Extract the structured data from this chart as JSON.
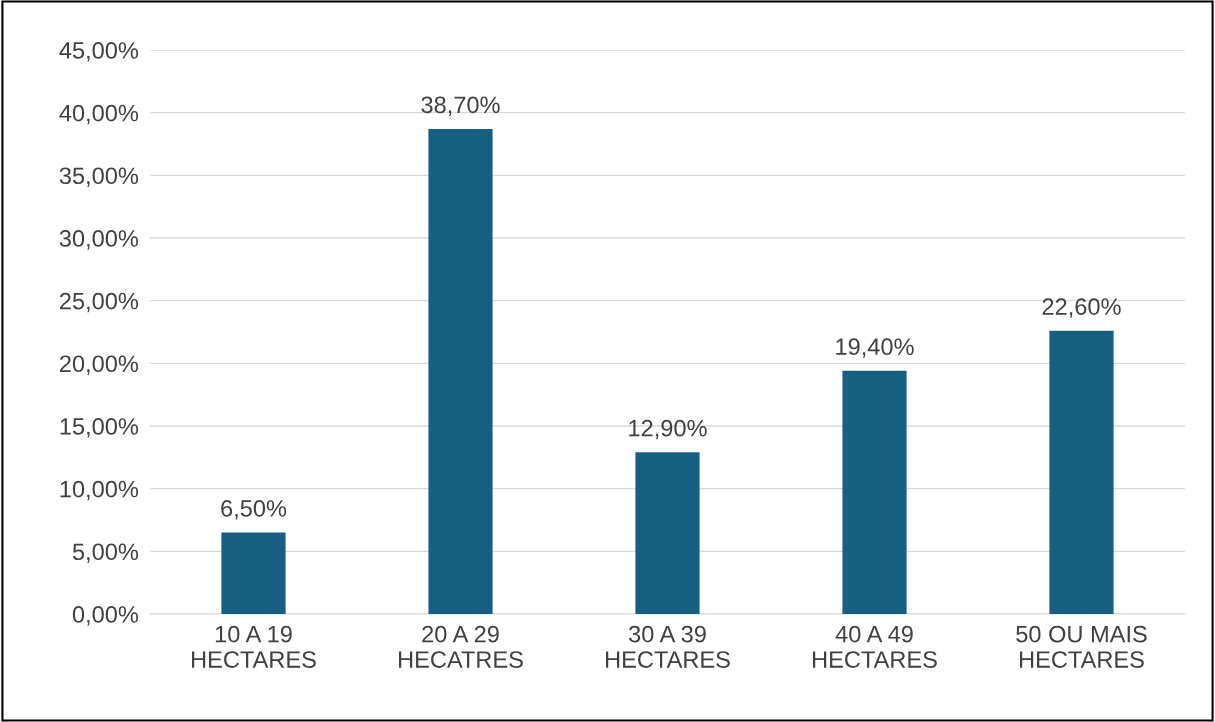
{
  "chart_data": {
    "type": "bar",
    "categories": [
      "10 A 19\nHECTARES",
      "20 A 29\nHECATRES",
      "30 A 39\nHECTARES",
      "40 A 49\nHECTARES",
      "50 OU MAIS\nHECTARES"
    ],
    "values": [
      6.5,
      38.7,
      12.9,
      19.4,
      22.6
    ],
    "value_labels": [
      "6,50%",
      "38,70%",
      "12,90%",
      "19,40%",
      "22,60%"
    ],
    "color": "#175f80",
    "ylim": [
      0,
      45
    ],
    "yticks": [
      {
        "value": 0,
        "label": "0,00%"
      },
      {
        "value": 5,
        "label": "5,00%"
      },
      {
        "value": 10,
        "label": "10,00%"
      },
      {
        "value": 15,
        "label": "15,00%"
      },
      {
        "value": 20,
        "label": "20,00%"
      },
      {
        "value": 25,
        "label": "25,00%"
      },
      {
        "value": 30,
        "label": "30,00%"
      },
      {
        "value": 35,
        "label": "35,00%"
      },
      {
        "value": 40,
        "label": "40,00%"
      },
      {
        "value": 45,
        "label": "45,00%"
      }
    ],
    "grid": "y",
    "legend": false
  }
}
